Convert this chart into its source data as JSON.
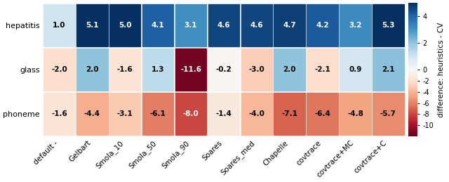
{
  "rows": [
    "hepatitis",
    "glass",
    "phoneme"
  ],
  "cols": [
    "default -",
    "Gelbart",
    "Smola_10",
    "Smola_50",
    "Smola_90",
    "Soares",
    "Soares_med",
    "Chapelle",
    "covtrace",
    "covtrace+MC",
    "covtrace+C"
  ],
  "values": [
    [
      1.0,
      5.1,
      5.0,
      4.1,
      3.1,
      4.6,
      4.6,
      4.7,
      4.2,
      3.2,
      5.3
    ],
    [
      -2.0,
      2.0,
      -1.6,
      1.3,
      -11.6,
      -0.2,
      -3.0,
      2.0,
      -2.1,
      0.9,
      2.1
    ],
    [
      -1.6,
      -4.4,
      -3.1,
      -6.1,
      -8.0,
      -1.4,
      -4.0,
      -7.1,
      -6.4,
      -4.8,
      -5.7
    ]
  ],
  "vmin": -12,
  "vmax": 5,
  "cmap": "RdBu",
  "colorbar_label": "difference: heuristics - CV",
  "colorbar_ticks": [
    4,
    2,
    0,
    -2,
    -4,
    -6,
    -8,
    -10
  ],
  "figsize": [
    6.4,
    2.59
  ],
  "dpi": 100,
  "linewidth": 1.5,
  "linecolor": "white"
}
